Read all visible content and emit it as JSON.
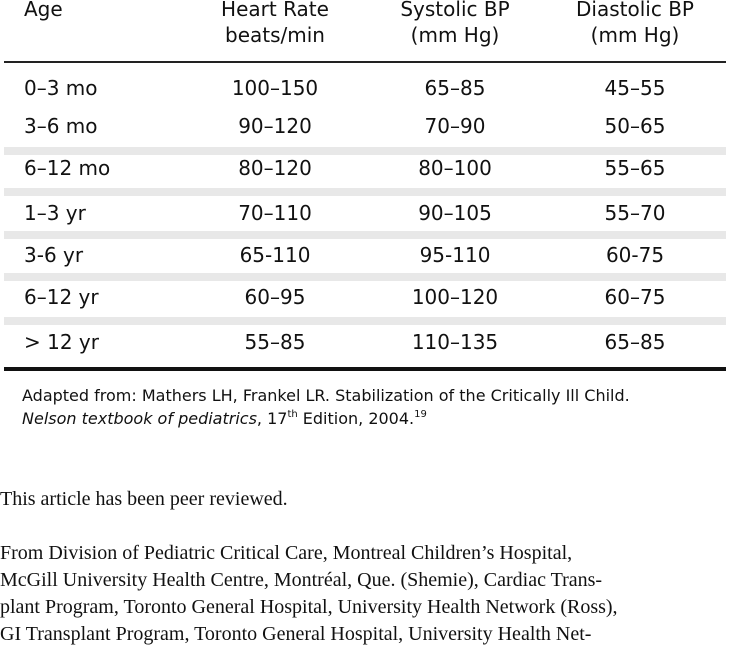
{
  "table": {
    "headers": [
      {
        "line1": "Age",
        "line2": ""
      },
      {
        "line1": "Heart Rate",
        "line2": "beats/min"
      },
      {
        "line1": "Systolic BP",
        "line2": "(mm Hg)"
      },
      {
        "line1": "Diastolic BP",
        "line2": "(mm Hg)"
      }
    ],
    "rows": [
      [
        "0–3 mo",
        "100–150",
        "65–85",
        "45–55"
      ],
      [
        "3–6 mo",
        "90–120",
        "70–90",
        "50–65"
      ],
      [
        "6–12 mo",
        "80–120",
        "80–100",
        "55–65"
      ],
      [
        "1–3 yr",
        "70–110",
        "90–105",
        "55–70"
      ],
      [
        "3-6 yr",
        "65-110",
        "95-110",
        "60-75"
      ],
      [
        "6–12 yr",
        "60–95",
        "100–120",
        "60–75"
      ],
      [
        "> 12 yr",
        "55–85",
        "110–135",
        "65–85"
      ]
    ]
  },
  "footnote": {
    "line1": "Adapted from: Mathers LH, Frankel LR. Stabilization of the Critically Ill Child.",
    "source_italic": "Nelson textbook of pediatrics",
    "edition_prefix": ", 17",
    "edition_sup": "th",
    "edition_suffix": " Edition, 2004.",
    "ref_sup": "19"
  },
  "peer_review": "This article has been peer reviewed.",
  "affiliation_lines": [
    "From Division of Pediatric Critical Care, Montreal Children’s Hospital,",
    "McGill University Health Centre, Montréal, Que. (Shemie), Cardiac Trans-",
    "plant Program, Toronto General Hospital, University Health Network (Ross),",
    "GI Transplant Program, Toronto General Hospital, University Health Net-"
  ]
}
